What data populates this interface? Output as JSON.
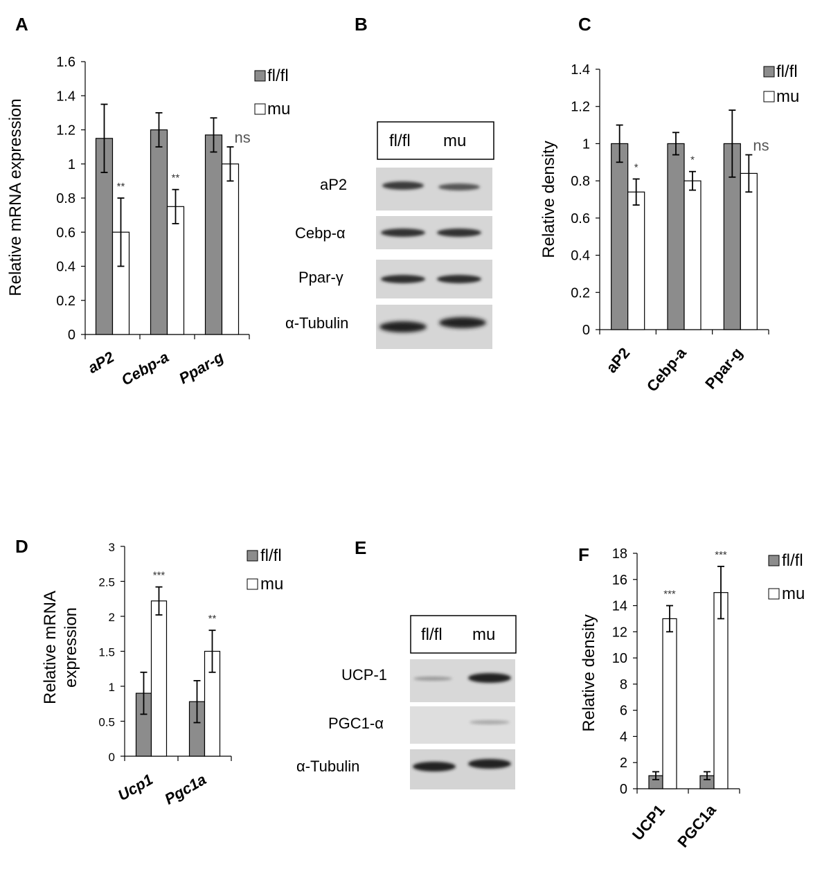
{
  "panels": {
    "A": "A",
    "B": "B",
    "C": "C",
    "D": "D",
    "E": "E",
    "F": "F"
  },
  "legend": {
    "fl": "fl/fl",
    "mu": "mu"
  },
  "colors": {
    "fl": "#8c8c8c",
    "mu": "#ffffff",
    "edge": "#000000"
  },
  "chart_data": [
    {
      "id": "A",
      "type": "bar",
      "ylabel": "Relative mRNA expression",
      "categories": [
        "aP2",
        "Cebp-a",
        "Ppar-g"
      ],
      "ylim": [
        0,
        1.6
      ],
      "yticks": [
        0,
        0.2,
        0.4,
        0.6,
        0.8,
        1,
        1.2,
        1.4,
        1.6
      ],
      "series": [
        {
          "name": "fl/fl",
          "values": [
            1.15,
            1.2,
            1.17
          ],
          "errors": [
            0.2,
            0.1,
            0.1
          ]
        },
        {
          "name": "mu",
          "values": [
            0.6,
            0.75,
            1.0
          ],
          "errors": [
            0.2,
            0.1,
            0.1
          ]
        }
      ],
      "annotations": [
        "**",
        "**",
        "ns"
      ]
    },
    {
      "id": "C",
      "type": "bar",
      "ylabel": "Relative density",
      "categories": [
        "aP2",
        "Cebp-a",
        "Ppar-g"
      ],
      "ylim": [
        0,
        1.4
      ],
      "yticks": [
        0,
        0.2,
        0.4,
        0.6,
        0.8,
        1,
        1.2,
        1.4
      ],
      "series": [
        {
          "name": "fl/fl",
          "values": [
            1.0,
            1.0,
            1.0
          ],
          "errors": [
            0.1,
            0.06,
            0.18
          ]
        },
        {
          "name": "mu",
          "values": [
            0.74,
            0.8,
            0.84
          ],
          "errors": [
            0.07,
            0.05,
            0.1
          ]
        }
      ],
      "annotations": [
        "*",
        "*",
        "ns"
      ]
    },
    {
      "id": "D",
      "type": "bar",
      "ylabel": "Relative mRNA expression",
      "ylabel_lines": [
        "Relative mRNA",
        "expression"
      ],
      "categories": [
        "Ucp1",
        "Pgc1a"
      ],
      "ylim": [
        0,
        3
      ],
      "yticks": [
        0,
        0.5,
        1,
        1.5,
        2,
        2.5,
        3
      ],
      "series": [
        {
          "name": "fl/fl",
          "values": [
            0.9,
            0.78
          ],
          "errors": [
            0.3,
            0.3
          ]
        },
        {
          "name": "mu",
          "values": [
            2.22,
            1.5
          ],
          "errors": [
            0.2,
            0.3
          ]
        }
      ],
      "annotations": [
        "***",
        "**"
      ]
    },
    {
      "id": "F",
      "type": "bar",
      "ylabel": "Relative density",
      "categories": [
        "UCP1",
        "PGC1a"
      ],
      "ylim": [
        0,
        18
      ],
      "yticks": [
        0,
        2,
        4,
        6,
        8,
        10,
        12,
        14,
        16,
        18
      ],
      "series": [
        {
          "name": "fl/fl",
          "values": [
            1,
            1
          ],
          "errors": [
            0.3,
            0.3
          ]
        },
        {
          "name": "mu",
          "values": [
            13,
            15
          ],
          "errors": [
            1,
            2
          ]
        }
      ],
      "annotations": [
        "***",
        "***"
      ]
    }
  ],
  "blots": {
    "B": {
      "header": [
        "fl/fl",
        "mu"
      ],
      "rows": [
        "aP2",
        "Cebp-α",
        "Ppar-γ",
        "α-Tubulin"
      ]
    },
    "E": {
      "header": [
        "fl/fl",
        "mu"
      ],
      "rows": [
        "UCP-1",
        "PGC1-α",
        "α-Tubulin"
      ]
    }
  }
}
